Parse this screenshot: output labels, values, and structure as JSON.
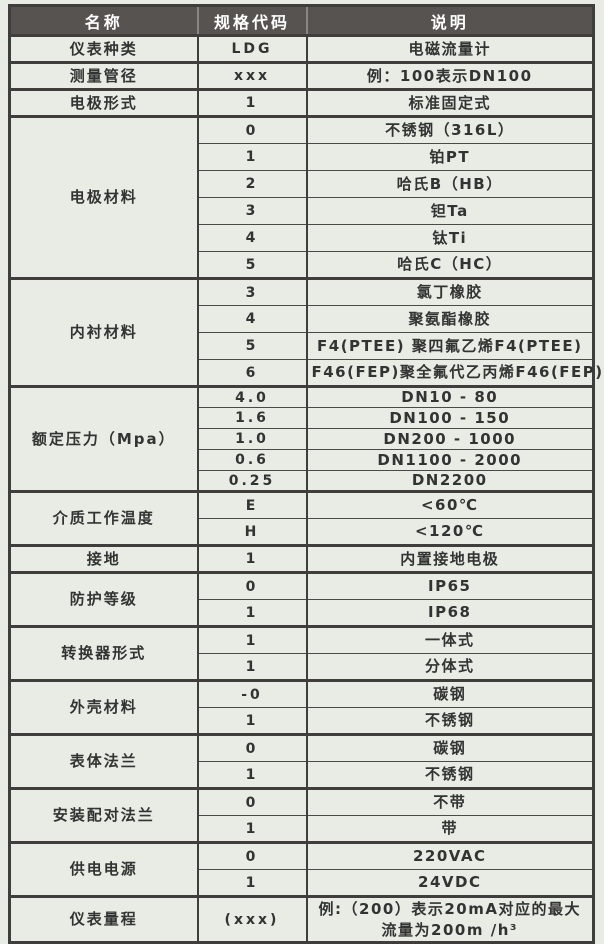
{
  "colors": {
    "header_bg": "#575350",
    "header_text": "#ffffff",
    "cell_bg": "#e9ece4",
    "border": "#3f3e3c",
    "text": "#333333"
  },
  "table": {
    "headers": [
      "名称",
      "规格代码",
      "说明"
    ],
    "groups": [
      {
        "name": "仪表种类",
        "rows": [
          {
            "code": "LDG",
            "desc": "电磁流量计"
          }
        ]
      },
      {
        "name": "测量管径",
        "rows": [
          {
            "code": "xxx",
            "desc": "例：100表示DN100"
          }
        ]
      },
      {
        "name": "电极形式",
        "rows": [
          {
            "code": "1",
            "desc": "标准固定式"
          }
        ]
      },
      {
        "name": "电极材料",
        "rows": [
          {
            "code": "0",
            "desc": "不锈钢（316L）"
          },
          {
            "code": "1",
            "desc": "铂PT"
          },
          {
            "code": "2",
            "desc": "哈氏B（HB）"
          },
          {
            "code": "3",
            "desc": "钽Ta"
          },
          {
            "code": "4",
            "desc": "钛Ti"
          },
          {
            "code": "5",
            "desc": "哈氏C（HC）"
          }
        ]
      },
      {
        "name": "内衬材料",
        "rows": [
          {
            "code": "3",
            "desc": "氯丁橡胶"
          },
          {
            "code": "4",
            "desc": "聚氨酯橡胶"
          },
          {
            "code": "5",
            "desc": "F4(PTEE) 聚四氟乙烯F4(PTEE)"
          },
          {
            "code": "6",
            "desc": "F46(FEP)聚全氟代乙丙烯F46(FEP)"
          }
        ]
      },
      {
        "name": "额定压力（Mpa）",
        "compact": true,
        "rows": [
          {
            "code": "4.0",
            "desc": "DN10 - 80"
          },
          {
            "code": "1.6",
            "desc": "DN100 - 150"
          },
          {
            "code": "1.0",
            "desc": "DN200 - 1000"
          },
          {
            "code": "0.6",
            "desc": "DN1100 - 2000"
          },
          {
            "code": "0.25",
            "desc": "DN2200"
          }
        ]
      },
      {
        "name": "介质工作温度",
        "rows": [
          {
            "code": "E",
            "desc": "<60℃"
          },
          {
            "code": "H",
            "desc": "<120℃"
          }
        ]
      },
      {
        "name": "接地",
        "rows": [
          {
            "code": "1",
            "desc": "内置接地电极"
          }
        ]
      },
      {
        "name": "防护等级",
        "rows": [
          {
            "code": "0",
            "desc": "IP65"
          },
          {
            "code": "1",
            "desc": "IP68"
          }
        ]
      },
      {
        "name": "转换器形式",
        "rows": [
          {
            "code": "1",
            "desc": "一体式"
          },
          {
            "code": "1",
            "desc": "分体式"
          }
        ]
      },
      {
        "name": "外壳材料",
        "rows": [
          {
            "code": "-0",
            "desc": "碳钢"
          },
          {
            "code": "1",
            "desc": "不锈钢"
          }
        ]
      },
      {
        "name": "表体法兰",
        "rows": [
          {
            "code": "0",
            "desc": "碳钢"
          },
          {
            "code": "1",
            "desc": "不锈钢"
          }
        ]
      },
      {
        "name": "安装配对法兰",
        "rows": [
          {
            "code": "0",
            "desc": "不带"
          },
          {
            "code": "1",
            "desc": "带"
          }
        ]
      },
      {
        "name": "供电电源",
        "rows": [
          {
            "code": "0",
            "desc": "220VAC"
          },
          {
            "code": "1",
            "desc": "24VDC"
          }
        ]
      },
      {
        "name": "仪表量程",
        "tall": true,
        "rows": [
          {
            "code": "(xxx)",
            "desc_lines": [
              "例:（200）表示20mA对应的最大",
              "流量为200m /h³"
            ]
          }
        ]
      }
    ]
  }
}
